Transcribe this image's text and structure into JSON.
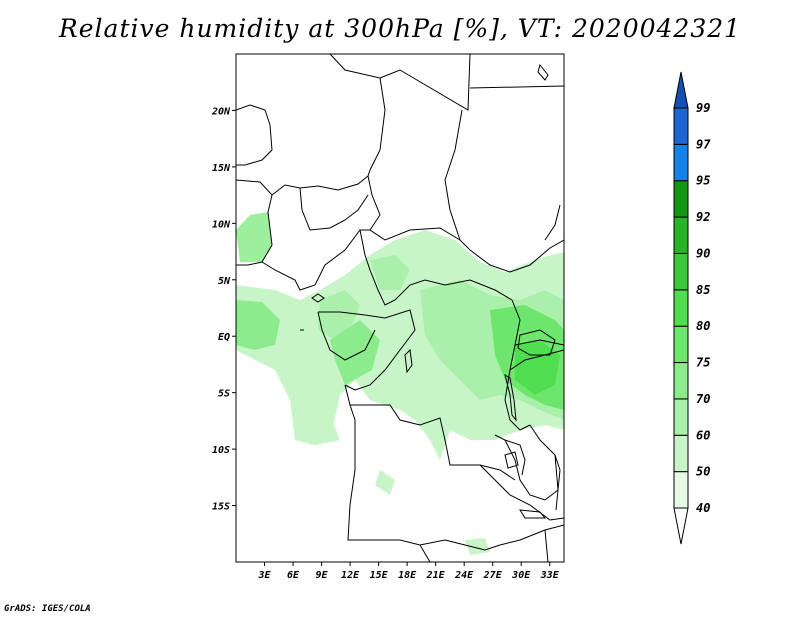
{
  "title": "Relative humidity at 300hPa [%], VT: 2020042321",
  "credit": "GrADS: IGES/COLA",
  "map": {
    "lon_range": [
      0,
      34.5
    ],
    "lat_range": [
      -20,
      25
    ],
    "x_ticks": [
      {
        "lon": 3,
        "label": "3E"
      },
      {
        "lon": 6,
        "label": "6E"
      },
      {
        "lon": 9,
        "label": "9E"
      },
      {
        "lon": 12,
        "label": "12E"
      },
      {
        "lon": 15,
        "label": "15E"
      },
      {
        "lon": 18,
        "label": "18E"
      },
      {
        "lon": 21,
        "label": "21E"
      },
      {
        "lon": 24,
        "label": "24E"
      },
      {
        "lon": 27,
        "label": "27E"
      },
      {
        "lon": 30,
        "label": "30E"
      },
      {
        "lon": 33,
        "label": "33E"
      }
    ],
    "y_ticks": [
      {
        "lat": 20,
        "label": "20N"
      },
      {
        "lat": 15,
        "label": "15N"
      },
      {
        "lat": 10,
        "label": "10N"
      },
      {
        "lat": 5,
        "label": "5N"
      },
      {
        "lat": 0,
        "label": "EQ"
      },
      {
        "lat": -5,
        "label": "5S"
      },
      {
        "lat": -10,
        "label": "10S"
      },
      {
        "lat": -15,
        "label": "15S"
      }
    ]
  },
  "colorbar": {
    "levels": [
      "40",
      "50",
      "60",
      "70",
      "75",
      "80",
      "85",
      "90",
      "92",
      "95",
      "97",
      "99"
    ],
    "colors": [
      "#e6fae6",
      "#c8f5c8",
      "#aaf0aa",
      "#8ceb8c",
      "#6ee66e",
      "#50de50",
      "#3cc83c",
      "#28b428",
      "#169616",
      "#1482e6",
      "#1e64d2",
      "#1450b4"
    ],
    "min_color": "#ffffff",
    "max_color": "#1450b4"
  }
}
